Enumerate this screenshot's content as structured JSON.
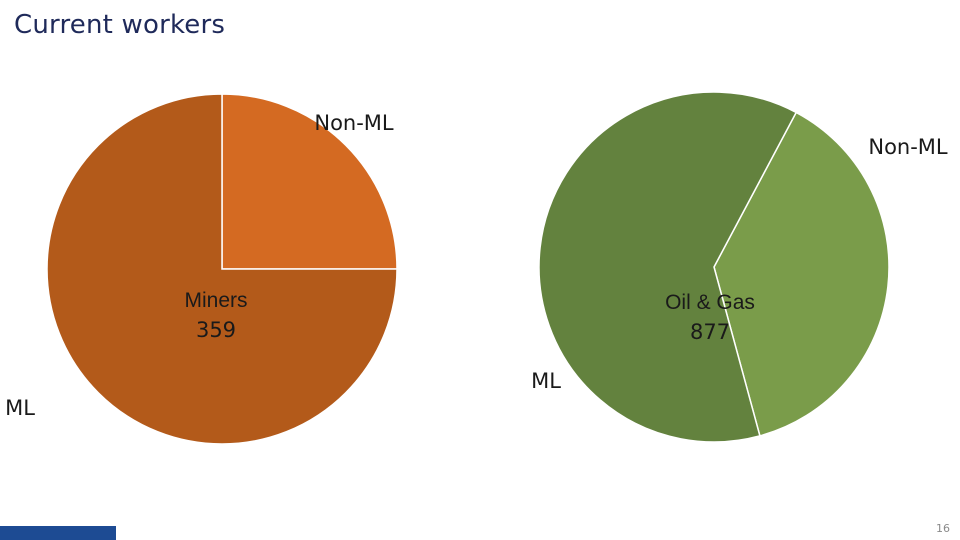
{
  "page": {
    "title": "Current workers",
    "page_number": "16"
  },
  "colors": {
    "title": "#1f2a5a",
    "miners_ml": "#b35a1a",
    "miners_non_ml": "#d46a22",
    "oilgas_ml": "#63823e",
    "oilgas_non_ml": "#7a9c4a",
    "footer_bar": "#1d4b93"
  },
  "chart_data": [
    {
      "type": "pie",
      "title": "",
      "center_label": "Miners",
      "center_value": "359",
      "slices": [
        {
          "label": "Non-ML",
          "value": 25,
          "color": "#d46a22"
        },
        {
          "label": "ML",
          "value": 75,
          "color": "#b35a1a"
        }
      ]
    },
    {
      "type": "pie",
      "title": "",
      "center_label": "Oil & Gas",
      "center_value": "877",
      "slices": [
        {
          "label": "Non-ML",
          "value": 38,
          "color": "#7a9c4a"
        },
        {
          "label": "ML",
          "value": 62,
          "color": "#63823e"
        }
      ]
    }
  ]
}
